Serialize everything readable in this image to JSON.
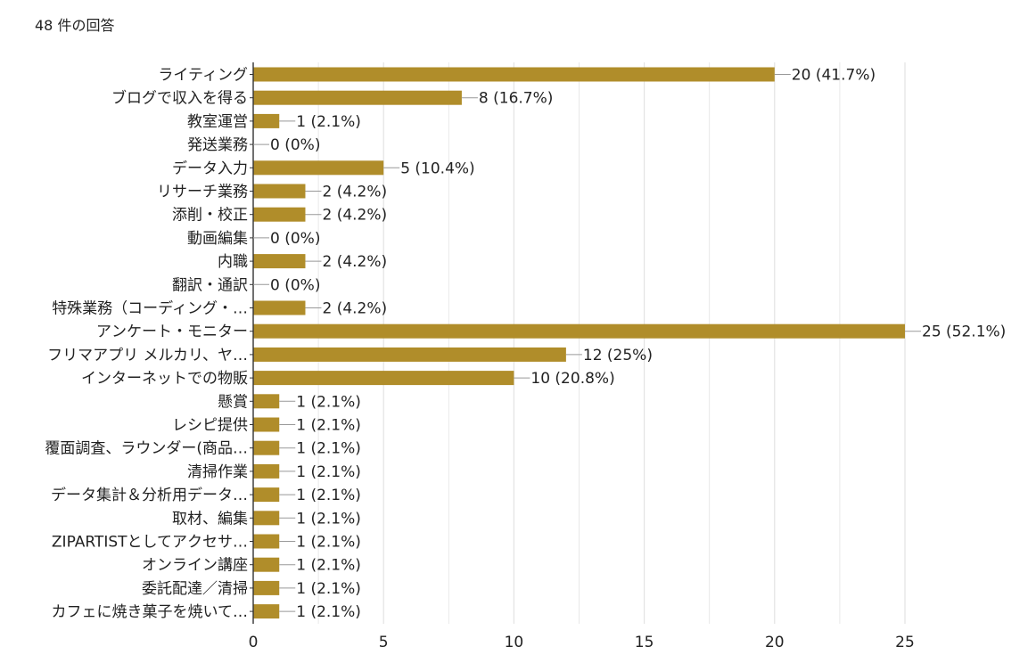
{
  "header": {
    "response_count": "48 件の回答"
  },
  "colors": {
    "bar": "#b08d2a",
    "grid": "#e3e3e3",
    "axis": "#333333",
    "connector": "#999999"
  },
  "chart_data": {
    "type": "bar",
    "orientation": "horizontal",
    "grid": true,
    "xlim": [
      0,
      25
    ],
    "xticks": [
      0,
      5,
      10,
      15,
      20,
      25
    ],
    "categories": [
      "ライティング",
      "ブログで収入を得る",
      "教室運営",
      "発送業務",
      "データ入力",
      "リサーチ業務",
      "添削・校正",
      "動画編集",
      "内職",
      "翻訳・通訳",
      "特殊業務（コーディング・…",
      "アンケート・モニター",
      "フリマアプリ メルカリ、ヤ…",
      "インターネットでの物販",
      "懸賞",
      "レシピ提供",
      "覆面調査、ラウンダー(商品…",
      "清掃作業",
      "データ集計＆分析用データ…",
      "取材、編集",
      "ZIPARTISTとしてアクセサ…",
      "オンライン講座",
      "委託配達／清掃",
      "カフェに焼き菓子を焼いて…"
    ],
    "values": [
      20,
      8,
      1,
      0,
      5,
      2,
      2,
      0,
      2,
      0,
      2,
      25,
      12,
      10,
      1,
      1,
      1,
      1,
      1,
      1,
      1,
      1,
      1,
      1
    ],
    "value_labels": [
      "20 (41.7%)",
      "8 (16.7%)",
      "1 (2.1%)",
      "0 (0%)",
      "5 (10.4%)",
      "2 (4.2%)",
      "2 (4.2%)",
      "0 (0%)",
      "2 (4.2%)",
      "0 (0%)",
      "2 (4.2%)",
      "25 (52.1%)",
      "12 (25%)",
      "10 (20.8%)",
      "1 (2.1%)",
      "1 (2.1%)",
      "1 (2.1%)",
      "1 (2.1%)",
      "1 (2.1%)",
      "1 (2.1%)",
      "1 (2.1%)",
      "1 (2.1%)",
      "1 (2.1%)",
      "1 (2.1%)"
    ]
  }
}
